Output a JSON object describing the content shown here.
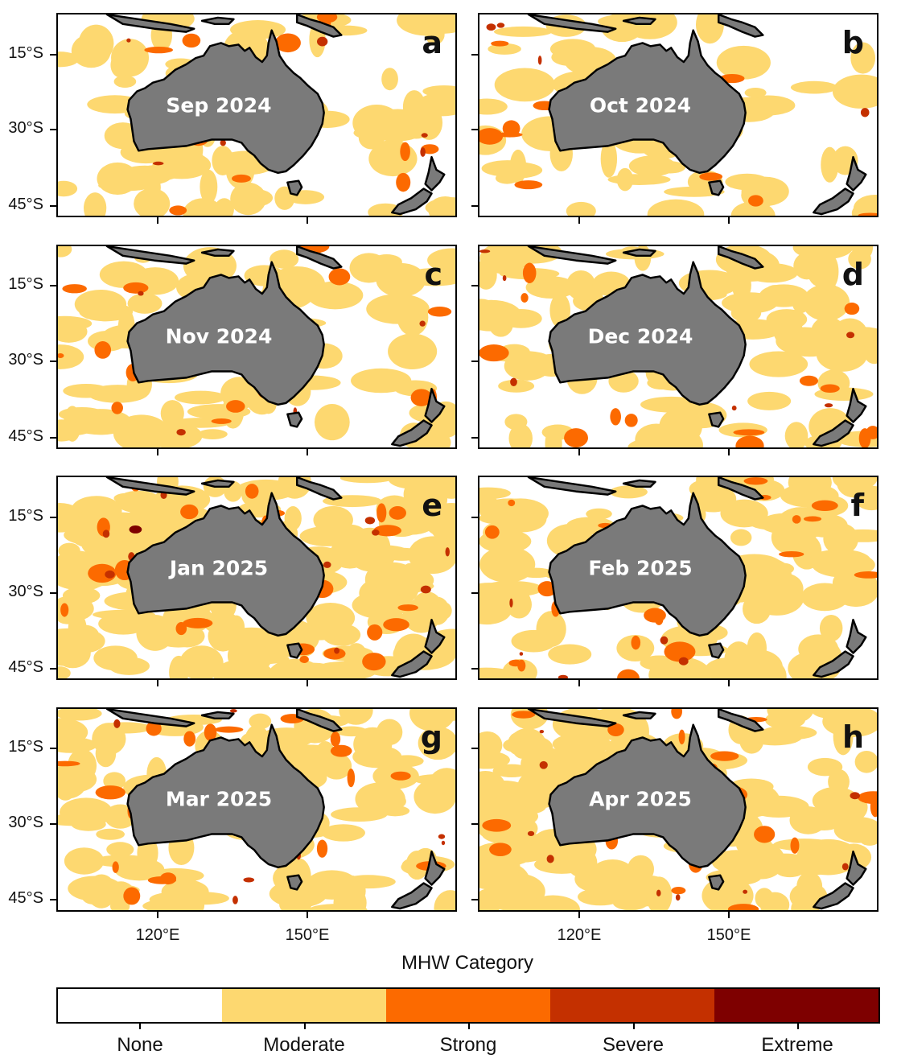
{
  "figure": {
    "panels": [
      {
        "letter": "a",
        "month": "Sep 2024"
      },
      {
        "letter": "b",
        "month": "Oct 2024"
      },
      {
        "letter": "c",
        "month": "Nov 2024"
      },
      {
        "letter": "d",
        "month": "Dec 2024"
      },
      {
        "letter": "e",
        "month": "Jan 2025"
      },
      {
        "letter": "f",
        "month": "Feb 2025"
      },
      {
        "letter": "g",
        "month": "Mar 2025"
      },
      {
        "letter": "h",
        "month": "Apr 2025"
      }
    ],
    "y_ticks": [
      "15°S",
      "30°S",
      "45°S"
    ],
    "x_ticks": [
      "120°E",
      "150°E"
    ],
    "colorbar_title": "MHW Category",
    "categories": [
      {
        "label": "None",
        "color": "#ffffff"
      },
      {
        "label": "Moderate",
        "color": "#fdd870"
      },
      {
        "label": "Strong",
        "color": "#fc6a00"
      },
      {
        "label": "Severe",
        "color": "#c43000"
      },
      {
        "label": "Extreme",
        "color": "#7e0000"
      }
    ],
    "land_color": "#7a7a7a"
  }
}
